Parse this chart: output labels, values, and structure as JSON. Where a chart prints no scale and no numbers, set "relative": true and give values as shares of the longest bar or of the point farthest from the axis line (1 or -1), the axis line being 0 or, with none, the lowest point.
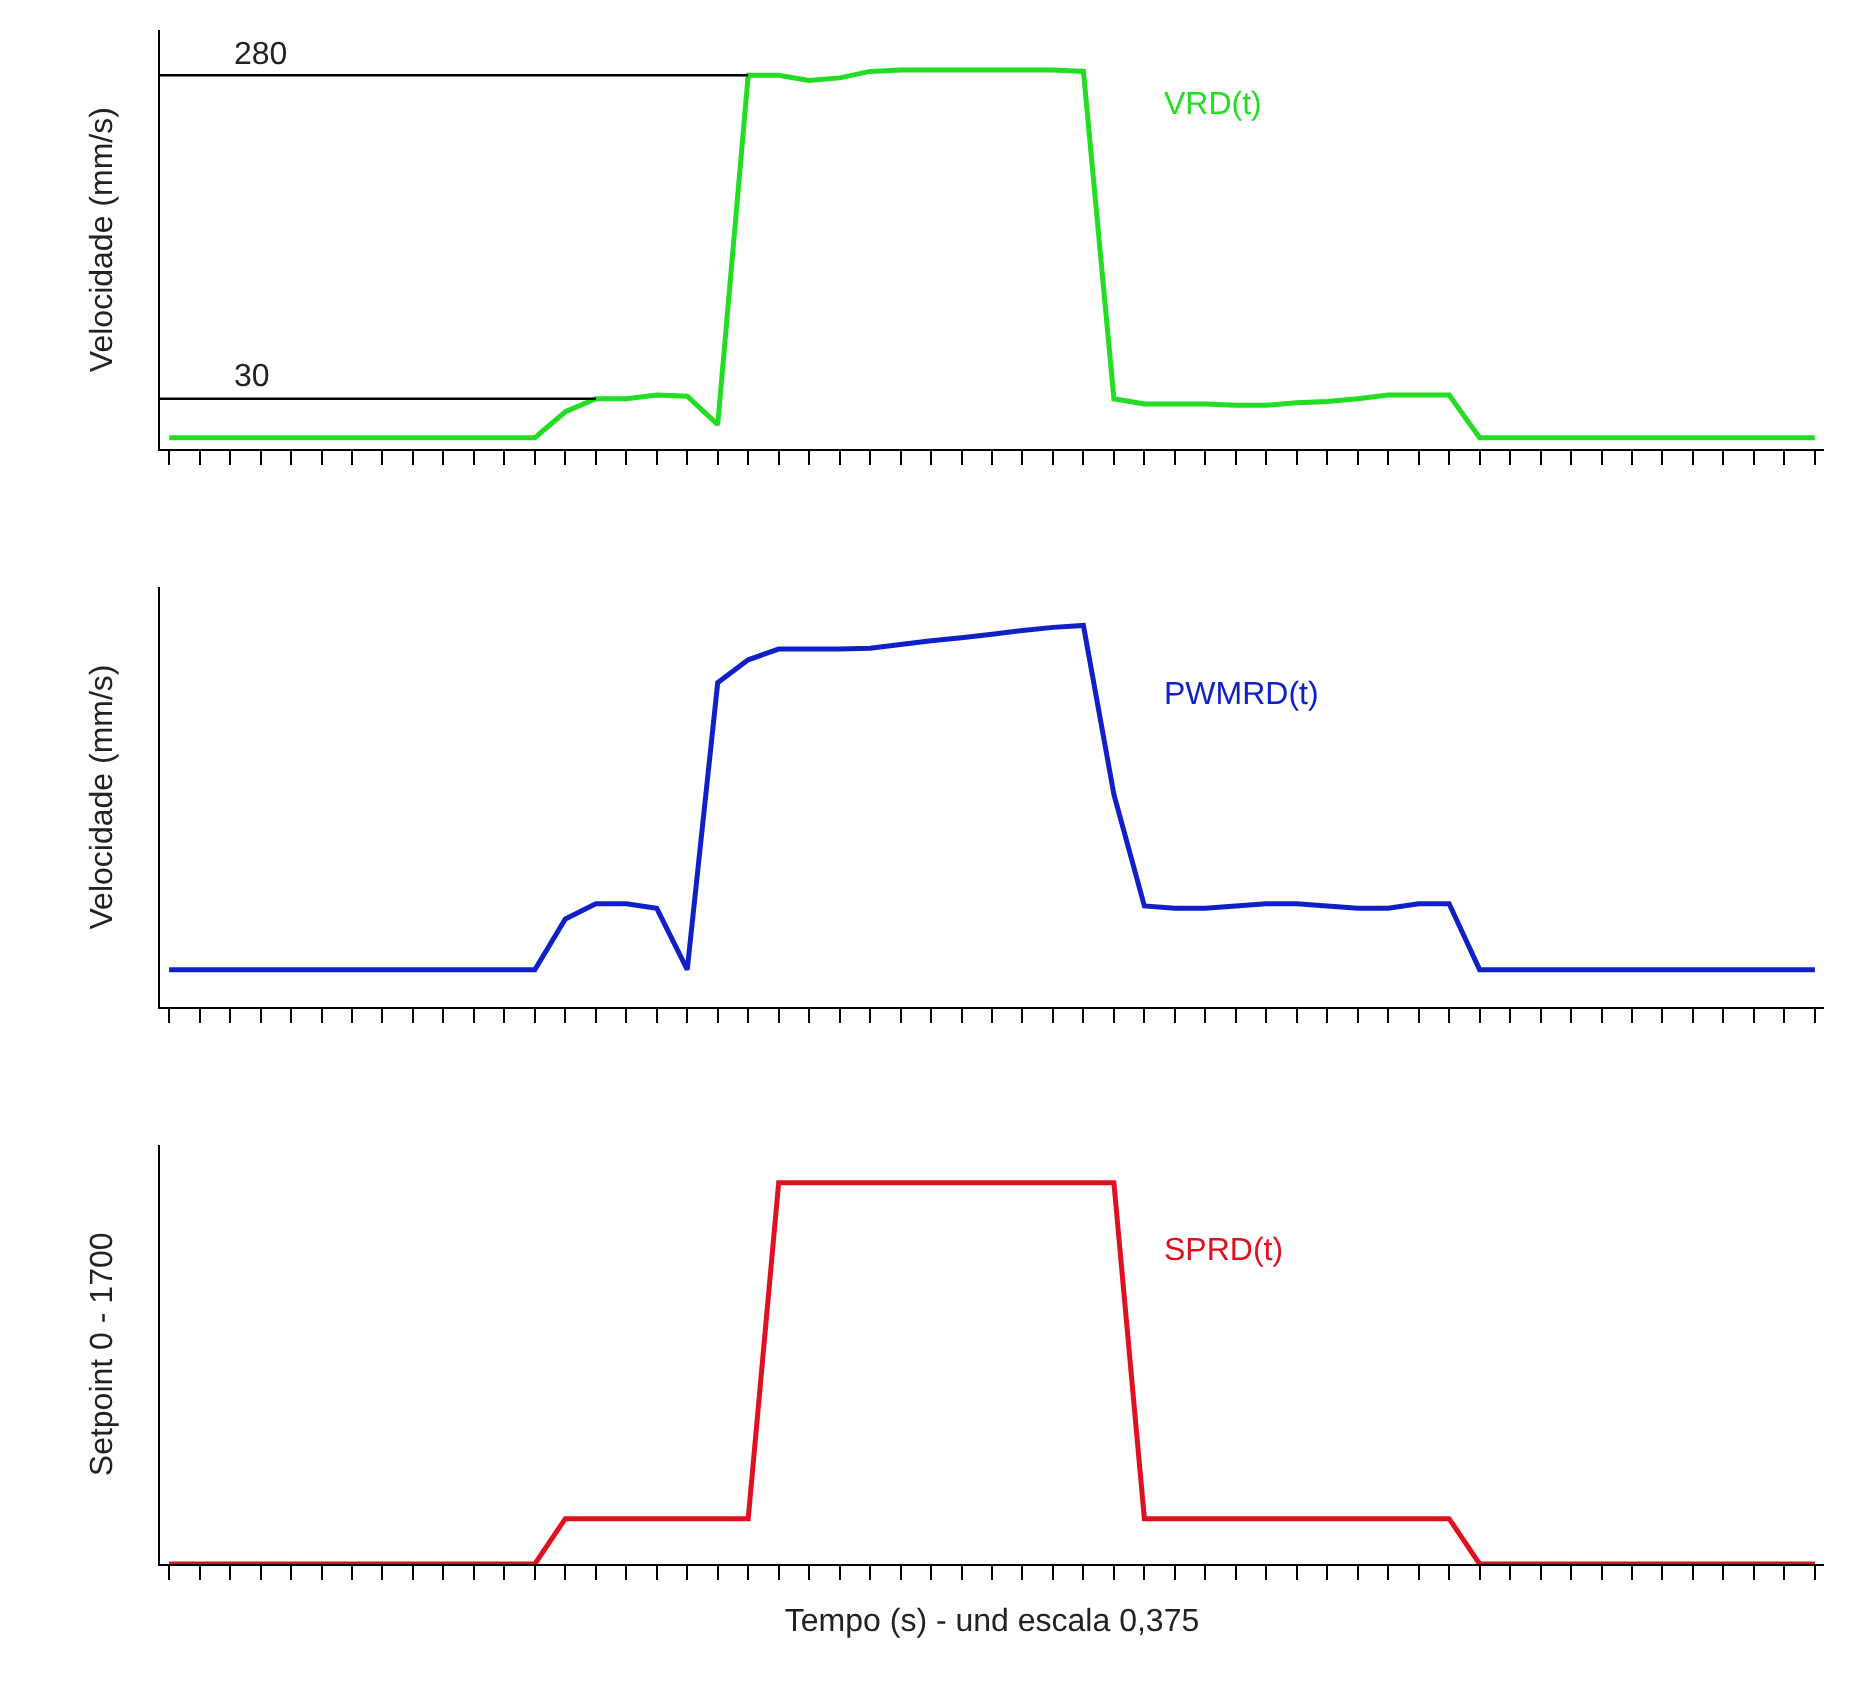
{
  "chart_data": [
    {
      "type": "line",
      "ylim": [
        -9,
        315
      ],
      "ylabel": "Velocidade (mm/s)",
      "tick_labels": false,
      "categories": [
        null,
        null,
        null,
        null,
        null,
        null,
        null,
        null,
        null,
        null,
        null,
        null,
        null,
        null,
        null,
        null,
        null,
        null,
        null,
        null,
        null,
        null,
        null,
        null,
        null,
        null,
        null,
        null,
        null,
        null,
        null,
        null,
        null,
        null,
        null,
        null,
        null,
        null,
        null,
        null,
        null,
        null,
        null,
        null,
        null,
        null,
        null,
        null,
        null,
        null,
        null,
        null,
        null,
        null,
        null
      ],
      "series": [
        {
          "name": "VRD(t)",
          "color": "#22dd22",
          "values": [
            0,
            0,
            0,
            0,
            0,
            0,
            0,
            0,
            0,
            0,
            0,
            0,
            0,
            20,
            30,
            30,
            33,
            32,
            10,
            280,
            280,
            276,
            278,
            283,
            284,
            284,
            284,
            284,
            284,
            284,
            283,
            30,
            26,
            26,
            26,
            25,
            25,
            27,
            28,
            30,
            33,
            33,
            33,
            0,
            0,
            0,
            0,
            0,
            0,
            0,
            0,
            0,
            0,
            0,
            0
          ]
        }
      ],
      "ref_lines": [
        {
          "axis": "y",
          "value": 280,
          "label": "280",
          "color": "#000000"
        },
        {
          "axis": "y",
          "value": 30,
          "label": "30",
          "color": "#000000"
        }
      ]
    },
    {
      "type": "line",
      "relative": true,
      "ylabel": "Velocidade (mm/s)",
      "tick_labels": false,
      "categories": [
        null,
        null,
        null,
        null,
        null,
        null,
        null,
        null,
        null,
        null,
        null,
        null,
        null,
        null,
        null,
        null,
        null,
        null,
        null,
        null,
        null,
        null,
        null,
        null,
        null,
        null,
        null,
        null,
        null,
        null,
        null,
        null,
        null,
        null,
        null,
        null,
        null,
        null,
        null,
        null,
        null,
        null,
        null,
        null,
        null,
        null,
        null,
        null,
        null,
        null,
        null,
        null,
        null,
        null,
        null
      ],
      "series": [
        {
          "name": "PWMRD(t)",
          "color": "#1020c8",
          "values": [
            0.097,
            0.097,
            0.097,
            0.097,
            0.097,
            0.097,
            0.097,
            0.097,
            0.097,
            0.097,
            0.097,
            0.097,
            0.097,
            0.23,
            0.27,
            0.27,
            0.258,
            0.097,
            0.85,
            0.91,
            0.938,
            0.938,
            0.938,
            0.94,
            0.95,
            0.96,
            0.968,
            0.977,
            0.987,
            0.995,
            1,
            0.557,
            0.264,
            0.258,
            0.258,
            0.264,
            0.27,
            0.27,
            0.264,
            0.258,
            0.258,
            0.27,
            0.27,
            0.097,
            0.097,
            0.097,
            0.097,
            0.097,
            0.097,
            0.097,
            0.097,
            0.097,
            0.097,
            0.097,
            0.097
          ]
        }
      ]
    },
    {
      "type": "line",
      "relative": true,
      "ylabel": "Setpoint 0 - 1700",
      "xlabel": "Tempo (s) - und escala 0,375",
      "tick_labels": false,
      "categories": [
        null,
        null,
        null,
        null,
        null,
        null,
        null,
        null,
        null,
        null,
        null,
        null,
        null,
        null,
        null,
        null,
        null,
        null,
        null,
        null,
        null,
        null,
        null,
        null,
        null,
        null,
        null,
        null,
        null,
        null,
        null,
        null,
        null,
        null,
        null,
        null,
        null,
        null,
        null,
        null,
        null,
        null,
        null,
        null,
        null,
        null,
        null,
        null,
        null,
        null,
        null,
        null,
        null,
        null,
        null
      ],
      "series": [
        {
          "name": "SPRD(t)",
          "color": "#e01020",
          "values": [
            0,
            0,
            0,
            0,
            0,
            0,
            0,
            0,
            0,
            0,
            0,
            0,
            0,
            0.119,
            0.119,
            0.119,
            0.119,
            0.119,
            0.119,
            0.119,
            1,
            1,
            1,
            1,
            1,
            1,
            1,
            1,
            1,
            1,
            1,
            1,
            0.119,
            0.119,
            0.119,
            0.119,
            0.119,
            0.119,
            0.119,
            0.119,
            0.119,
            0.119,
            0.119,
            0,
            0,
            0,
            0,
            0,
            0,
            0,
            0,
            0,
            0,
            0,
            0
          ]
        }
      ]
    }
  ]
}
